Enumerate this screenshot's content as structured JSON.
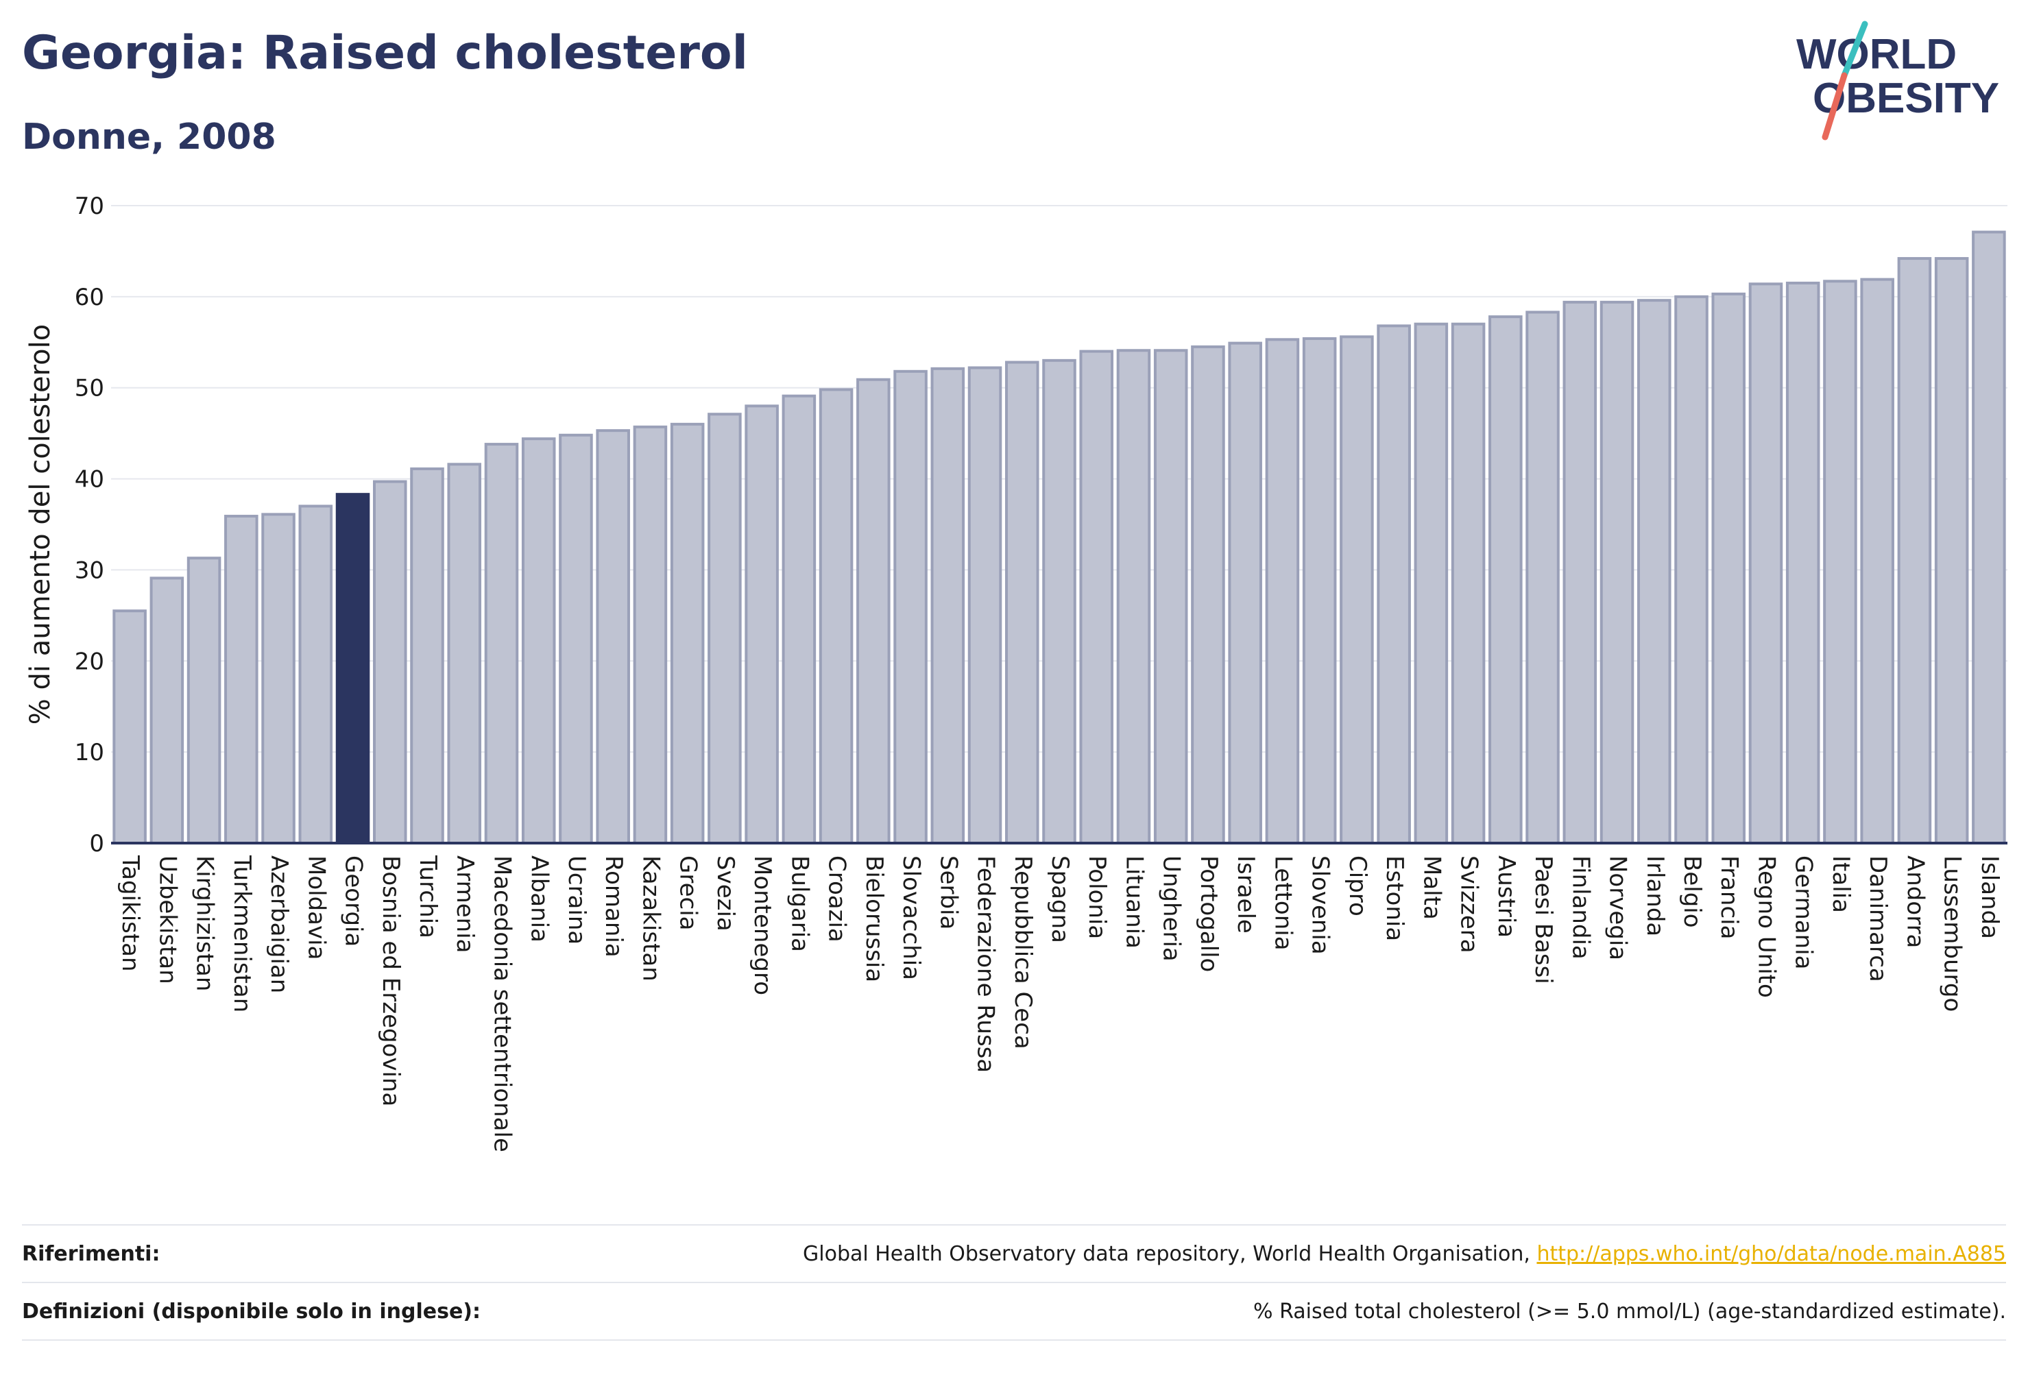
{
  "header": {
    "title": "Georgia: Raised cholesterol",
    "subtitle": "Donne, 2008"
  },
  "logo": {
    "line1": "WORLD",
    "line2": "OBESITY",
    "slash_colors": [
      "#3bbfbf",
      "#e8685a"
    ]
  },
  "colors": {
    "bar": "#bfc3d2",
    "bar_border": "#9aa0b8",
    "highlight": "#2b3560",
    "text": "#2b3560",
    "link": "#e8b100"
  },
  "chart_data": {
    "type": "bar",
    "ylabel": "% di aumento del colesterolo",
    "ylim": [
      0,
      70
    ],
    "yticks": [
      0,
      10,
      20,
      30,
      40,
      50,
      60,
      70
    ],
    "grid": true,
    "highlight": "Georgia",
    "categories": [
      "Tagikistan",
      "Uzbekistan",
      "Kirghizistan",
      "Turkmenistan",
      "Azerbaigian",
      "Moldavia",
      "Georgia",
      "Bosnia ed Erzegovina",
      "Turchia",
      "Armenia",
      "Macedonia settentrionale",
      "Albania",
      "Ucraina",
      "Romania",
      "Kazakistan",
      "Grecia",
      "Svezia",
      "Montenegro",
      "Bulgaria",
      "Croazia",
      "Bielorussia",
      "Slovacchia",
      "Serbia",
      "Federazione Russa",
      "Repubblica Ceca",
      "Spagna",
      "Polonia",
      "Lituania",
      "Ungheria",
      "Portogallo",
      "Israele",
      "Lettonia",
      "Slovenia",
      "Cipro",
      "Estonia",
      "Malta",
      "Svizzera",
      "Austria",
      "Paesi Bassi",
      "Finlandia",
      "Norvegia",
      "Irlanda",
      "Belgio",
      "Francia",
      "Regno Unito",
      "Germania",
      "Italia",
      "Danimarca",
      "Andorra",
      "Lussemburgo",
      "Islanda"
    ],
    "values": [
      25.5,
      29.1,
      31.3,
      35.9,
      36.1,
      37.0,
      38.3,
      39.7,
      41.1,
      41.6,
      43.8,
      44.4,
      44.8,
      45.3,
      45.7,
      46.0,
      47.1,
      48.0,
      49.1,
      49.8,
      50.9,
      51.8,
      52.1,
      52.2,
      52.8,
      53.0,
      54.0,
      54.1,
      54.1,
      54.5,
      54.9,
      55.3,
      55.4,
      55.6,
      56.8,
      57.0,
      57.0,
      57.8,
      58.3,
      59.4,
      59.4,
      59.6,
      60.0,
      60.3,
      61.4,
      61.5,
      61.7,
      61.9,
      64.2,
      64.2,
      67.1
    ]
  },
  "footer": {
    "references_label": "Riferimenti:",
    "references_text": "Global Health Observatory data repository, World Health Organisation, ",
    "references_link": "http://apps.who.int/gho/data/node.main.A885",
    "definitions_label": "Definizioni (disponibile solo in inglese):",
    "definitions_text": "% Raised total cholesterol (>= 5.0 mmol/L) (age-standardized estimate)."
  }
}
